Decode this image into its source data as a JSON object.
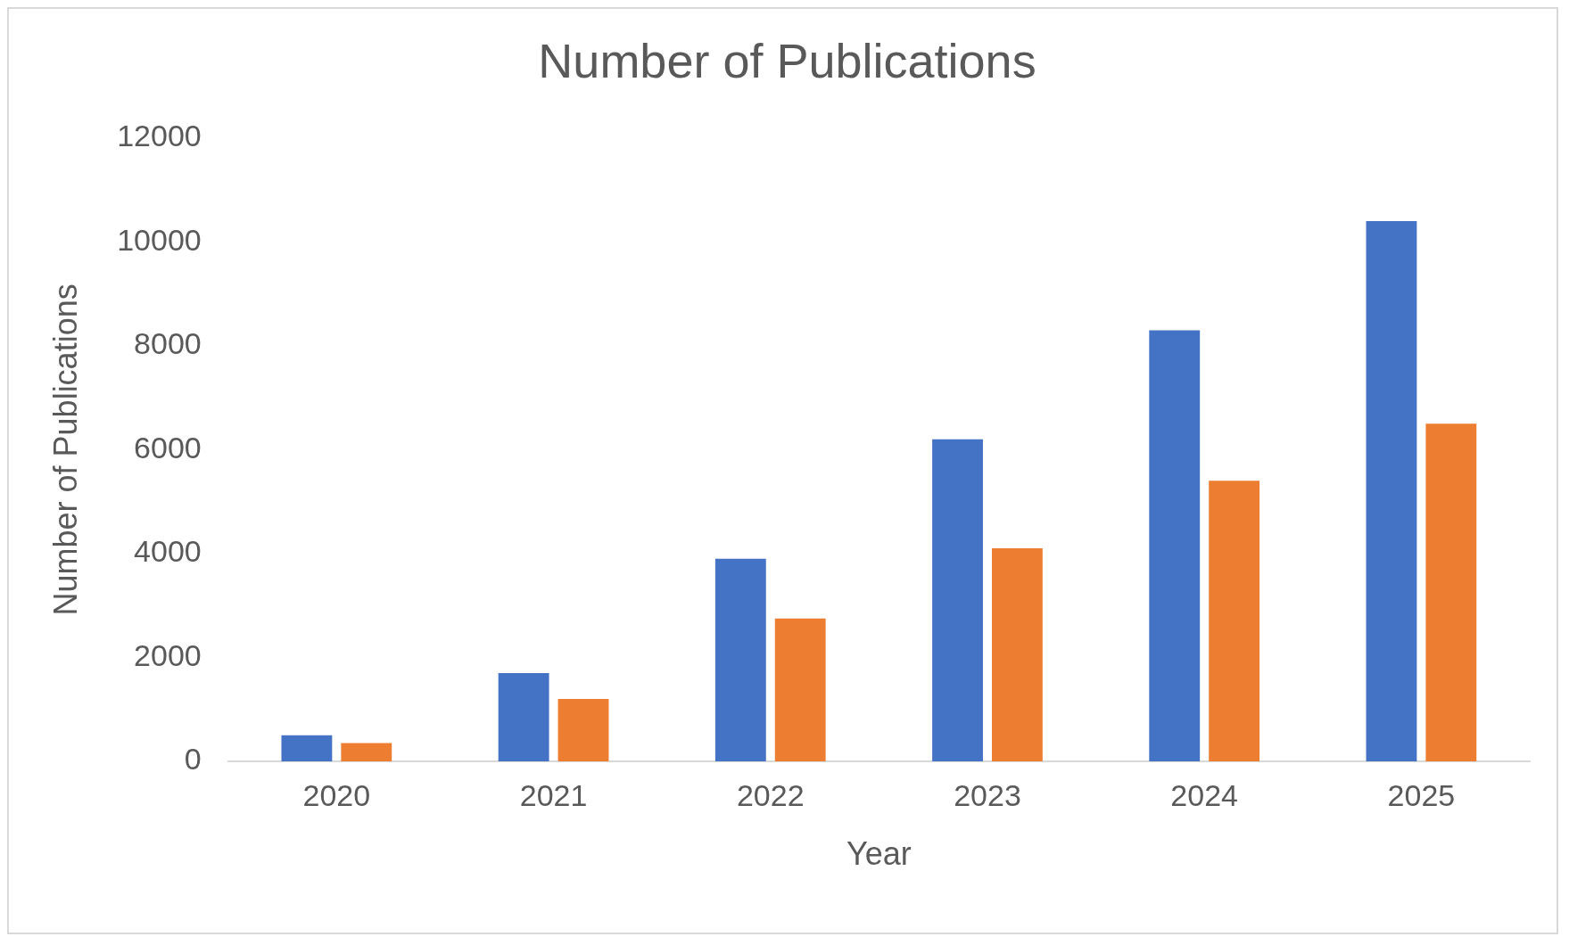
{
  "chart_data": {
    "type": "bar",
    "title": "Number of Publications",
    "xlabel": "Year",
    "ylabel": "Number of Publications",
    "categories": [
      "2020",
      "2021",
      "2022",
      "2023",
      "2024",
      "2025"
    ],
    "series": [
      {
        "color": "#4472c4",
        "values": [
          500,
          1700,
          3900,
          6200,
          8300,
          10400
        ]
      },
      {
        "color": "#ed7d31",
        "values": [
          350,
          1200,
          2750,
          4100,
          5400,
          6500
        ]
      }
    ],
    "ylim": [
      0,
      12000
    ],
    "yticks": [
      0,
      2000,
      4000,
      6000,
      8000,
      10000,
      12000
    ],
    "grid": false
  }
}
